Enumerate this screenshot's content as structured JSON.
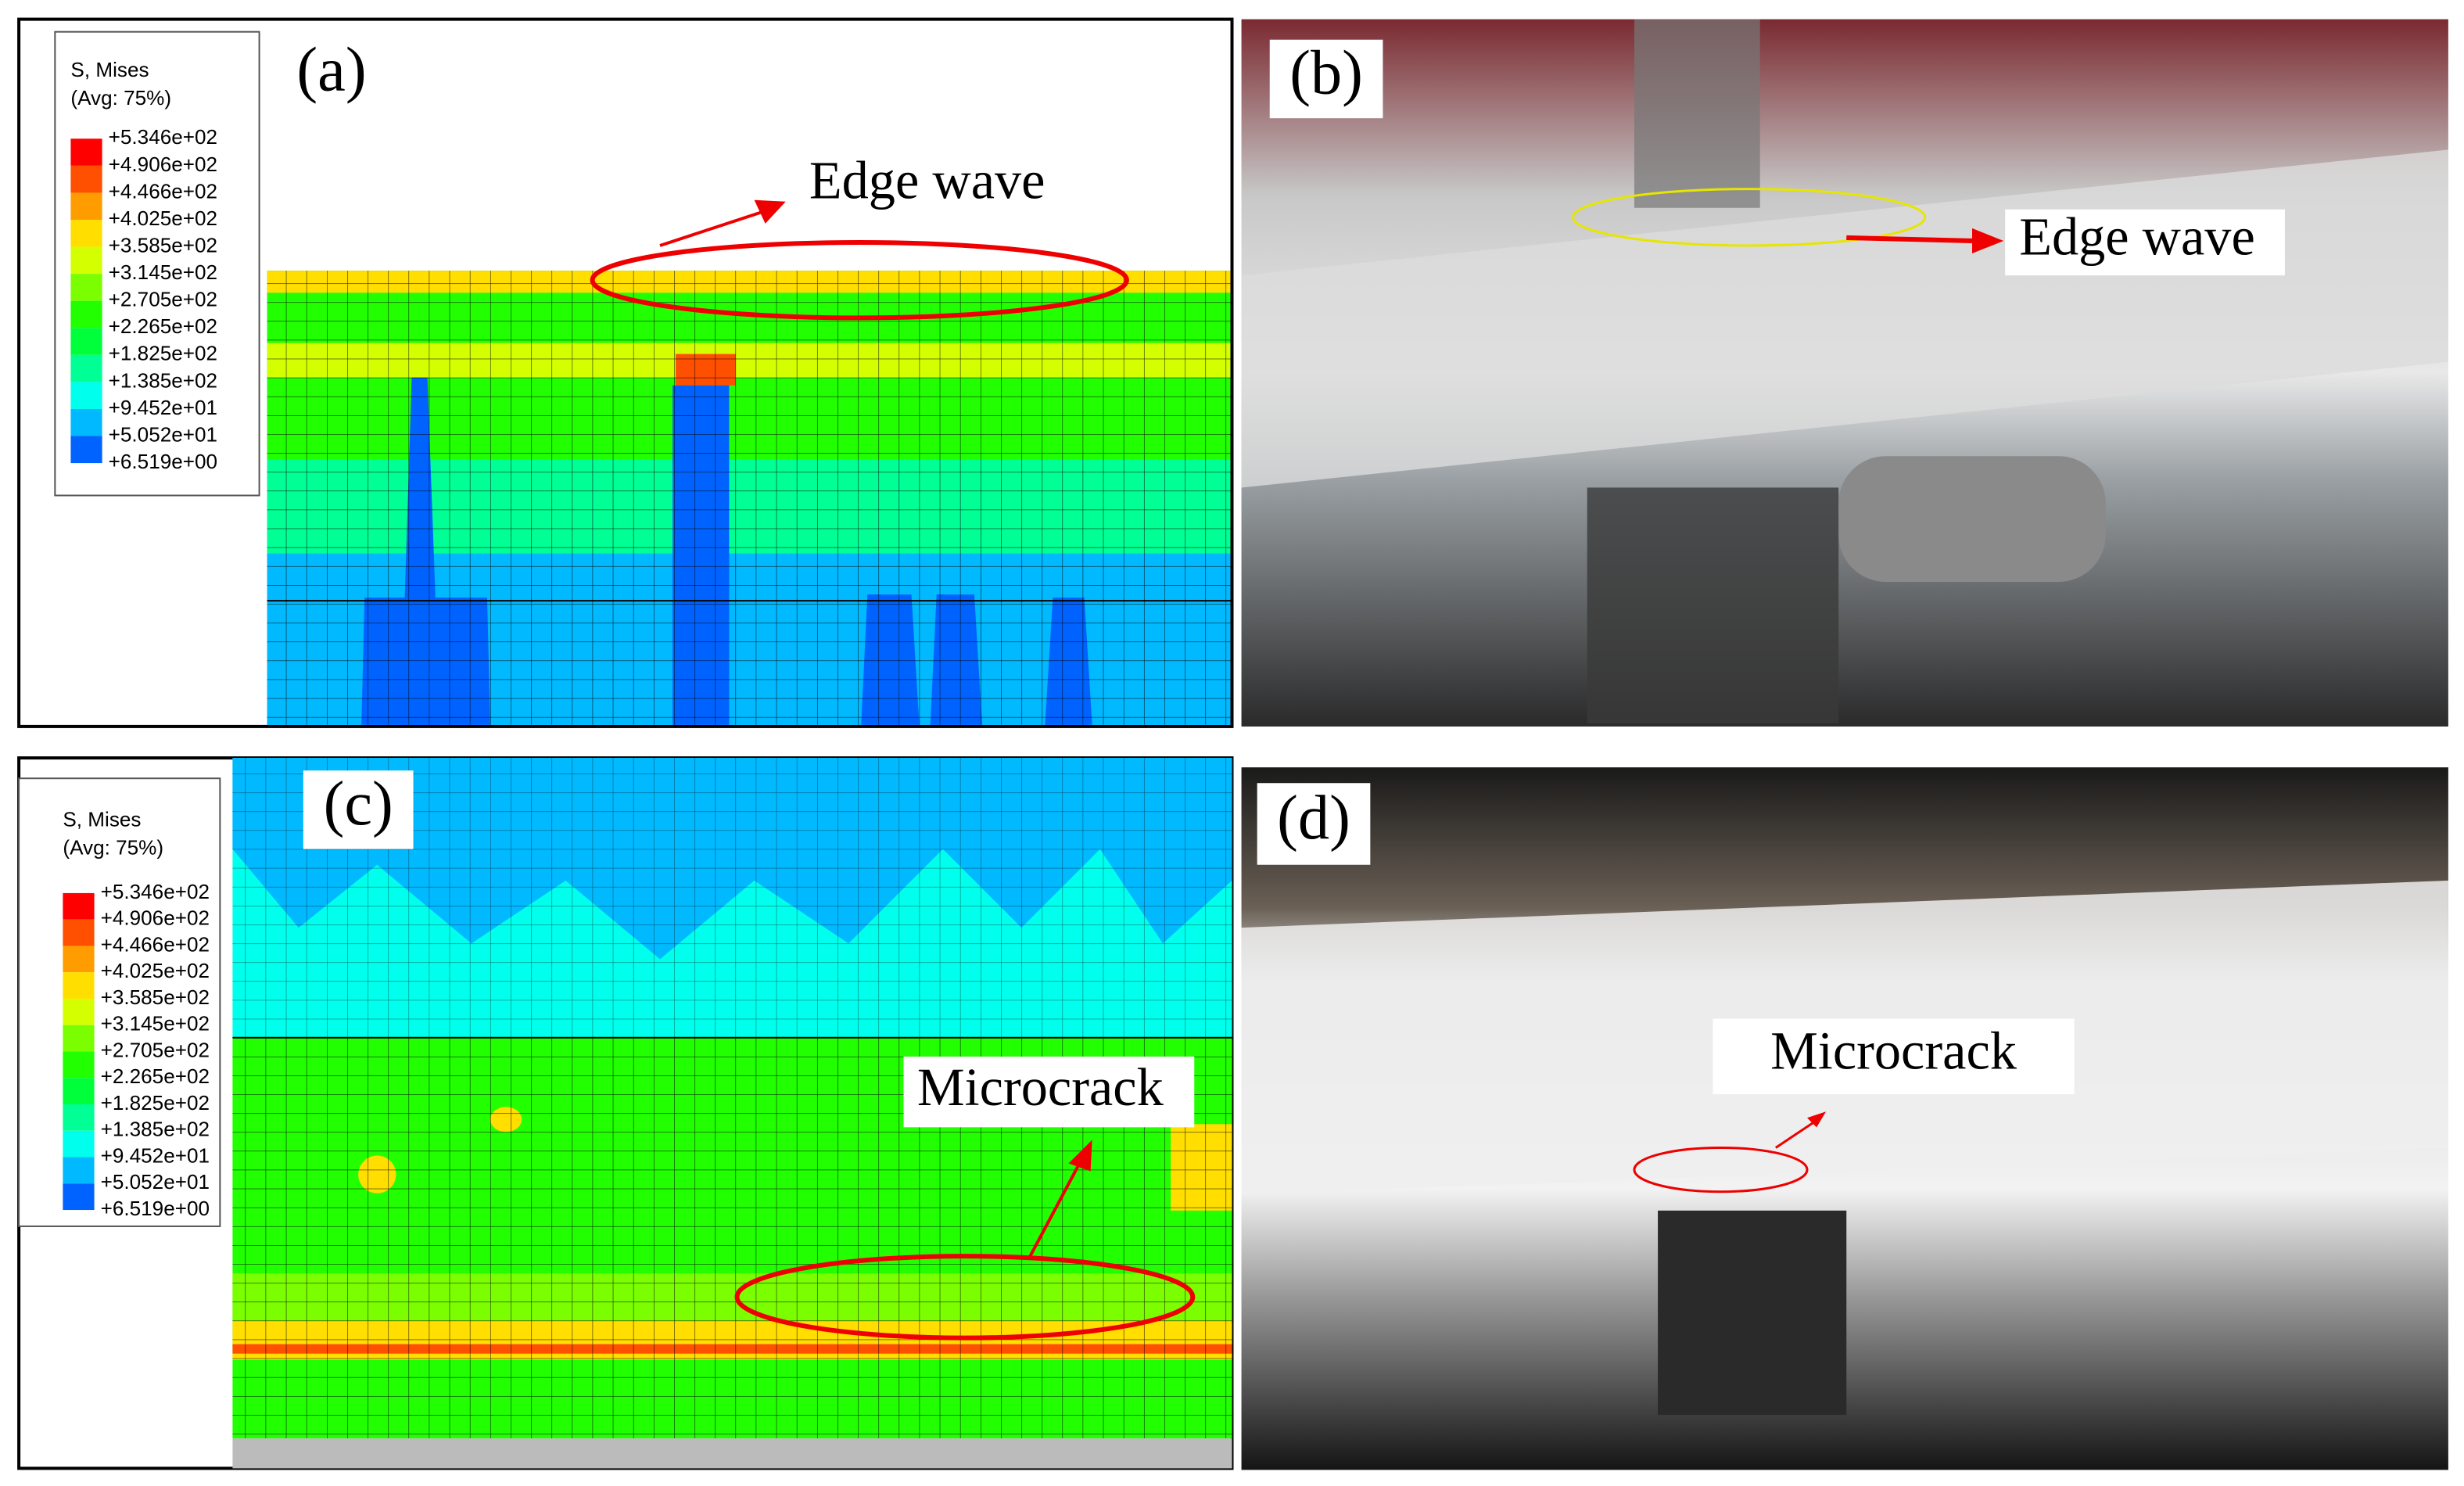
{
  "panels": [
    {
      "label": "(a)",
      "annotation": "Edge wave",
      "legend": {
        "title": "S, Mises",
        "subtitle": "(Avg: 75%)",
        "values": [
          "+5.346e+02",
          "+4.906e+02",
          "+4.466e+02",
          "+4.025e+02",
          "+3.585e+02",
          "+3.145e+02",
          "+2.705e+02",
          "+2.265e+02",
          "+1.825e+02",
          "+1.385e+02",
          "+9.452e+01",
          "+5.052e+01",
          "+6.519e+00"
        ]
      }
    },
    {
      "label": "(b)",
      "annotation": "Edge wave"
    },
    {
      "label": "(c)",
      "annotation": "Microcrack",
      "legend": {
        "title": "S, Mises",
        "subtitle": "(Avg: 75%)",
        "values": [
          "+5.346e+02",
          "+4.906e+02",
          "+4.466e+02",
          "+4.025e+02",
          "+3.585e+02",
          "+3.145e+02",
          "+2.705e+02",
          "+2.265e+02",
          "+1.825e+02",
          "+1.385e+02",
          "+9.452e+01",
          "+5.052e+01",
          "+6.519e+00"
        ]
      }
    },
    {
      "label": "(d)",
      "annotation": "Microcrack"
    }
  ]
}
